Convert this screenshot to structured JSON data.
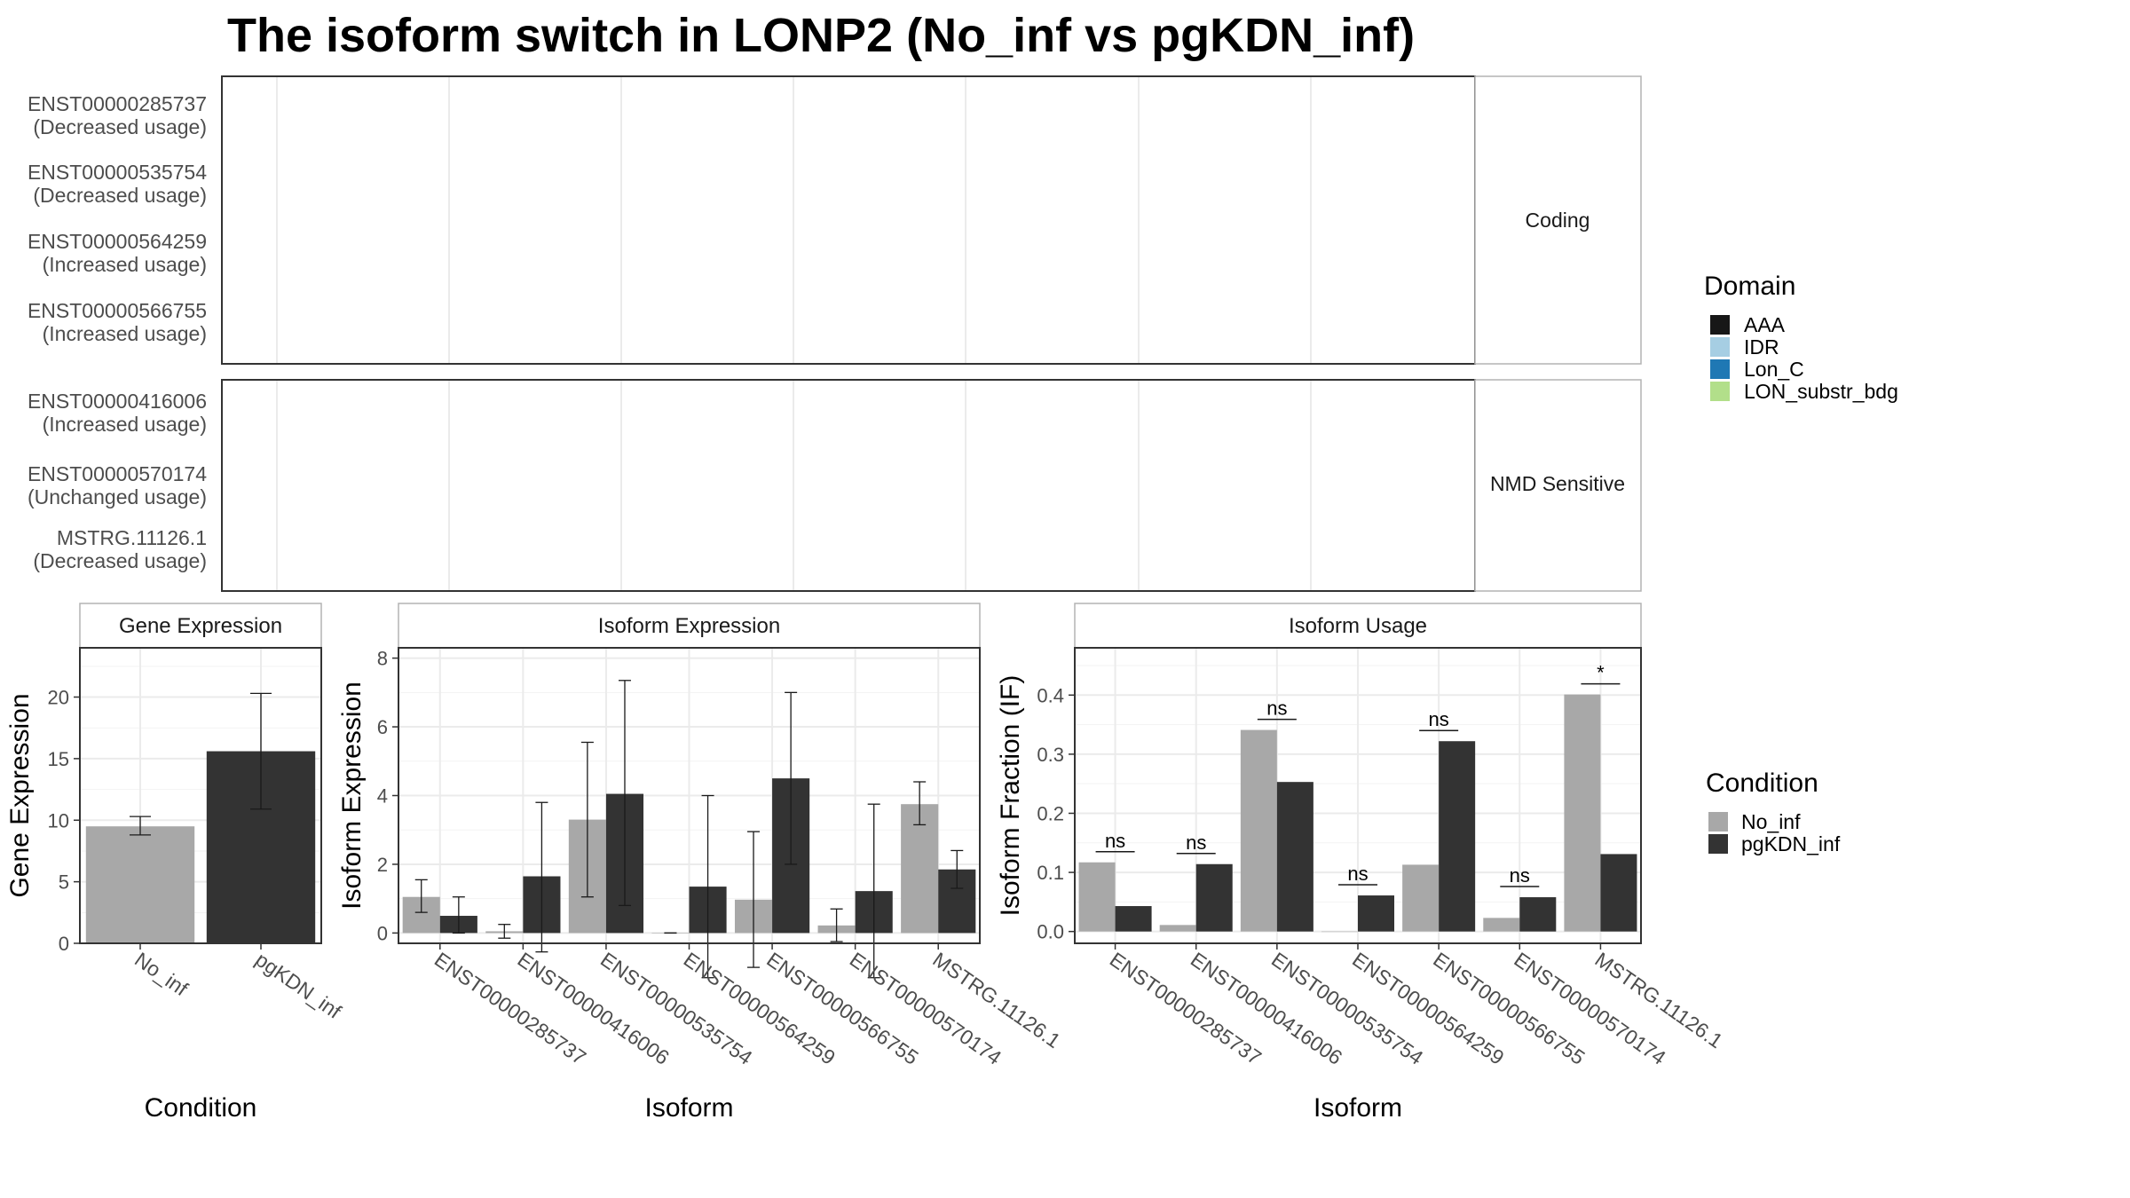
{
  "title": "The isoform switch in LONP2 (No_inf vs pgKDN_inf)",
  "colors": {
    "exon": "#808080",
    "AAA": "#171717",
    "IDR": "#a6cee3",
    "Lon_C": "#1f78b4",
    "LON_substr_bdg": "#b2df8a",
    "No_inf": "#a8a8a8",
    "pgKDN_inf": "#333333"
  },
  "structure": {
    "coding_label": "Coding",
    "nmd_label": "NMD Sensitive",
    "coding": [
      {
        "id": "ENST00000285737",
        "usage": "(Decreased usage)"
      },
      {
        "id": "ENST00000535754",
        "usage": "(Decreased usage)"
      },
      {
        "id": "ENST00000564259",
        "usage": "(Increased usage)"
      },
      {
        "id": "ENST00000566755",
        "usage": "(Increased usage)"
      }
    ],
    "nmd": [
      {
        "id": "ENST00000416006",
        "usage": "(Increased usage)"
      },
      {
        "id": "ENST00000570174",
        "usage": "(Unchanged usage)"
      },
      {
        "id": "MSTRG.11126.1",
        "usage": "(Decreased usage)"
      }
    ],
    "legend": {
      "title": "Domain",
      "items": [
        "AAA",
        "IDR",
        "Lon_C",
        "LON_substr_bdg"
      ]
    }
  },
  "chart_data": [
    {
      "type": "bar",
      "panel": "Gene Expression",
      "categories": [
        "No_inf",
        "pgKDN_inf"
      ],
      "values": [
        9.5,
        15.6
      ],
      "error_low": [
        8.8,
        10.9
      ],
      "error_high": [
        10.3,
        20.3
      ],
      "xlabel": "Condition",
      "ylabel": "Gene Expression",
      "ylim": [
        0,
        24
      ],
      "yticks": [
        0,
        5,
        10,
        15,
        20
      ]
    },
    {
      "type": "bar",
      "panel": "Isoform Expression",
      "categories": [
        "ENST00000285737",
        "ENST00000416006",
        "ENST00000535754",
        "ENST00000564259",
        "ENST00000566755",
        "ENST00000570174",
        "MSTRG.11126.1"
      ],
      "series": [
        {
          "name": "No_inf",
          "values": [
            1.05,
            0.05,
            3.3,
            0.0,
            0.97,
            0.22,
            3.75
          ],
          "error_low": [
            0.6,
            -0.15,
            1.05,
            0.0,
            -1.0,
            -0.25,
            3.15
          ],
          "error_high": [
            1.55,
            0.25,
            5.55,
            0.0,
            2.95,
            0.7,
            4.4
          ]
        },
        {
          "name": "pgKDN_inf",
          "values": [
            0.5,
            1.65,
            4.05,
            1.35,
            4.5,
            1.22,
            1.85
          ],
          "error_low": [
            0.0,
            -0.55,
            0.8,
            -1.3,
            2.0,
            -1.3,
            1.3
          ],
          "error_high": [
            1.05,
            3.8,
            7.35,
            4.0,
            7.0,
            3.75,
            2.4
          ]
        }
      ],
      "xlabel": "Isoform",
      "ylabel": "Isoform Expression",
      "ylim": [
        -0.3,
        8.3
      ],
      "yticks": [
        0,
        2,
        4,
        6,
        8
      ]
    },
    {
      "type": "bar",
      "panel": "Isoform Usage",
      "categories": [
        "ENST00000285737",
        "ENST00000416006",
        "ENST00000535754",
        "ENST00000564259",
        "ENST00000566755",
        "ENST00000570174",
        "MSTRG.11126.1"
      ],
      "series": [
        {
          "name": "No_inf",
          "values": [
            0.117,
            0.011,
            0.341,
            0.0,
            0.113,
            0.023,
            0.401
          ]
        },
        {
          "name": "pgKDN_inf",
          "values": [
            0.043,
            0.114,
            0.253,
            0.061,
            0.322,
            0.058,
            0.131
          ]
        }
      ],
      "significance": [
        "ns",
        "ns",
        "ns",
        "ns",
        "ns",
        "ns",
        "*"
      ],
      "xlabel": "Isoform",
      "ylabel": "Isoform Fraction (IF)",
      "ylim": [
        -0.02,
        0.48
      ],
      "yticks": [
        0.0,
        0.1,
        0.2,
        0.3,
        0.4
      ],
      "ytick_labels": [
        "0.0",
        "0.1",
        "0.2",
        "0.3",
        "0.4"
      ]
    }
  ],
  "condition_legend": {
    "title": "Condition",
    "items": [
      "No_inf",
      "pgKDN_inf"
    ]
  }
}
